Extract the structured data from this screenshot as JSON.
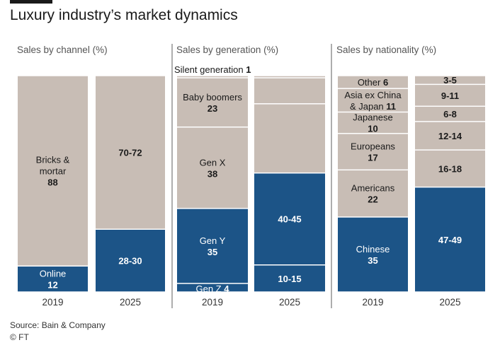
{
  "title": "Luxury industry’s market dynamics",
  "source": "Source: Bain & Company",
  "credit": "© FT",
  "colors": {
    "grey": "#c8bdb5",
    "blue": "#1c5487",
    "text_on_grey": "#1a1a1a",
    "text_on_blue": "#ffffff",
    "divider": "#777777"
  },
  "chart_data": [
    {
      "type": "bar",
      "stacked": true,
      "title": "Sales by channel (%)",
      "categories": [
        "2019",
        "2025"
      ],
      "series": [
        {
          "name": "Online",
          "color": "blue",
          "values": [
            12,
            29
          ],
          "labels": [
            "Online\n*12",
            "*28-30"
          ]
        },
        {
          "name": "Bricks & mortar",
          "color": "grey",
          "values": [
            88,
            71
          ],
          "labels": [
            "Bricks &\nmortar\n*88",
            "*70-72"
          ]
        }
      ]
    },
    {
      "type": "bar",
      "stacked": true,
      "title": "Sales by generation (%)",
      "categories": [
        "2019",
        "2025"
      ],
      "series": [
        {
          "name": "Gen Z",
          "color": "blue",
          "values": [
            4,
            12.5
          ],
          "labels": [
            "Gen Z *4",
            "*10-15"
          ]
        },
        {
          "name": "Gen Y",
          "color": "blue",
          "values": [
            35,
            42.5
          ],
          "labels": [
            "Gen Y\n*35",
            "*40-45"
          ]
        },
        {
          "name": "Gen X",
          "color": "grey",
          "values": [
            38,
            32
          ],
          "labels": [
            "Gen X\n*38",
            ""
          ]
        },
        {
          "name": "Baby boomers",
          "color": "grey",
          "values": [
            23,
            12
          ],
          "labels": [
            "Baby boomers\n*23",
            ""
          ]
        },
        {
          "name": "Silent generation",
          "color": "grey",
          "values": [
            1,
            1
          ],
          "labels": [
            "Silent generation *1",
            ""
          ]
        }
      ]
    },
    {
      "type": "bar",
      "stacked": true,
      "title": "Sales by nationality (%)",
      "categories": [
        "2019",
        "2025"
      ],
      "series": [
        {
          "name": "Chinese",
          "color": "blue",
          "values": [
            35,
            48
          ],
          "labels": [
            "Chinese\n*35",
            "*47-49"
          ]
        },
        {
          "name": "Americans",
          "color": "grey",
          "values": [
            22,
            17
          ],
          "labels": [
            "Americans\n*22",
            "*16-18"
          ]
        },
        {
          "name": "Europeans",
          "color": "grey",
          "values": [
            17,
            13
          ],
          "labels": [
            "Europeans\n*17",
            "*12-14"
          ]
        },
        {
          "name": "Japanese",
          "color": "grey",
          "values": [
            10,
            7
          ],
          "labels": [
            "Japanese\n*10",
            "*6-8"
          ]
        },
        {
          "name": "Asia ex China & Japan",
          "color": "grey",
          "values": [
            11,
            10
          ],
          "labels": [
            "Asia ex China\n& Japan *11",
            "*9-11"
          ]
        },
        {
          "name": "Other",
          "color": "grey",
          "values": [
            6,
            4
          ],
          "labels": [
            "Other *6",
            "*3-5"
          ]
        }
      ]
    }
  ]
}
